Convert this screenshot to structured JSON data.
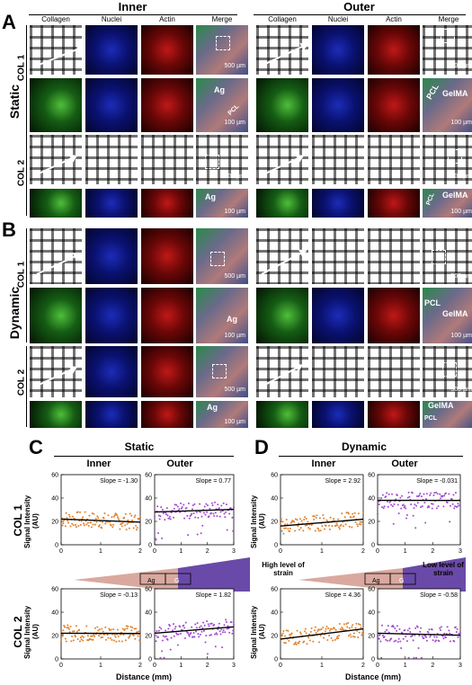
{
  "panels": {
    "A": "A",
    "B": "B",
    "C": "C",
    "D": "D"
  },
  "headers": {
    "inner": "Inner",
    "outer": "Outer"
  },
  "columns": [
    "Collagen",
    "Nuclei",
    "Actin",
    "Merge"
  ],
  "conditions": {
    "static": "Static",
    "dynamic": "Dynamic"
  },
  "rows": {
    "col1": "COL 1",
    "col2": "COL 2"
  },
  "scales": {
    "s500": "500 µm",
    "s100": "100 µm"
  },
  "region_labels": {
    "ag": "Ag",
    "pcl": "PCL",
    "gelma": "GelMA",
    "g": "G"
  },
  "chart_titles": {
    "static": "Static",
    "dynamic": "Dynamic",
    "inner": "Inner",
    "outer": "Outer"
  },
  "axis": {
    "ylabel": "Signal Intensity (AU)",
    "xlabel": "Distance (mm)"
  },
  "strain": {
    "high": "High level of strain",
    "low": "Low level of strain"
  },
  "chart_data": [
    {
      "id": "C-col1-inner",
      "type": "scatter",
      "slope_label": "Slope = -1.30",
      "xlim": [
        0,
        2
      ],
      "ylim": [
        0,
        60
      ],
      "xticks": [
        0,
        1,
        2
      ],
      "yticks": [
        0,
        20,
        40,
        60
      ],
      "slope": -1.3,
      "intercept": 22,
      "color": "#e0802a"
    },
    {
      "id": "C-col1-outer",
      "type": "scatter",
      "slope_label": "Slope = 0.77",
      "xlim": [
        0,
        3
      ],
      "ylim": [
        0,
        60
      ],
      "xticks": [
        0,
        1,
        2,
        3
      ],
      "yticks": [
        0,
        20,
        40,
        60
      ],
      "slope": 0.77,
      "intercept": 28,
      "color": "#a04ad0"
    },
    {
      "id": "C-col2-inner",
      "type": "scatter",
      "slope_label": "Slope = -0.13",
      "xlim": [
        0,
        2
      ],
      "ylim": [
        0,
        60
      ],
      "xticks": [
        0,
        1,
        2
      ],
      "yticks": [
        0,
        20,
        40,
        60
      ],
      "slope": -0.13,
      "intercept": 22,
      "color": "#e0802a"
    },
    {
      "id": "C-col2-outer",
      "type": "scatter",
      "slope_label": "Slope = 1.82",
      "xlim": [
        0,
        3
      ],
      "ylim": [
        0,
        60
      ],
      "xticks": [
        0,
        1,
        2,
        3
      ],
      "yticks": [
        0,
        20,
        40,
        60
      ],
      "slope": 1.82,
      "intercept": 22,
      "color": "#a04ad0"
    },
    {
      "id": "D-col1-inner",
      "type": "scatter",
      "slope_label": "Slope = 2.92",
      "xlim": [
        0,
        2
      ],
      "ylim": [
        0,
        60
      ],
      "xticks": [
        0,
        1,
        2
      ],
      "yticks": [
        0,
        20,
        40,
        60
      ],
      "slope": 2.92,
      "intercept": 16,
      "color": "#e0802a"
    },
    {
      "id": "D-col1-outer",
      "type": "scatter",
      "slope_label": "Slope = -0.031",
      "xlim": [
        0,
        3
      ],
      "ylim": [
        0,
        60
      ],
      "xticks": [
        0,
        1,
        2,
        3
      ],
      "yticks": [
        0,
        20,
        40,
        60
      ],
      "slope": -0.031,
      "intercept": 38,
      "color": "#a04ad0"
    },
    {
      "id": "D-col2-inner",
      "type": "scatter",
      "slope_label": "Slope = 4.36",
      "xlim": [
        0,
        2
      ],
      "ylim": [
        0,
        60
      ],
      "xticks": [
        0,
        1,
        2
      ],
      "yticks": [
        0,
        20,
        40,
        60
      ],
      "slope": 4.36,
      "intercept": 17,
      "color": "#e0802a"
    },
    {
      "id": "D-col2-outer",
      "type": "scatter",
      "slope_label": "Slope = -0.58",
      "xlim": [
        0,
        3
      ],
      "ylim": [
        0,
        60
      ],
      "xticks": [
        0,
        1,
        2,
        3
      ],
      "yticks": [
        0,
        20,
        40,
        60
      ],
      "slope": -0.58,
      "intercept": 22,
      "color": "#a04ad0"
    }
  ]
}
